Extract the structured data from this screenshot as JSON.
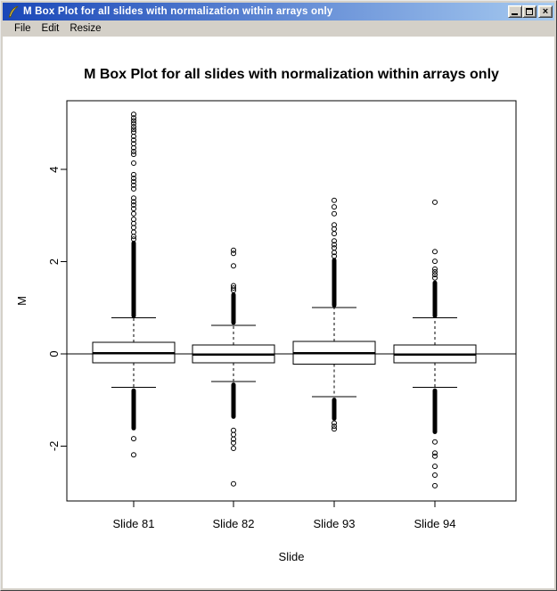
{
  "window": {
    "title": "M Box Plot for all slides with normalization within arrays only",
    "icon": "quill-icon",
    "controls": {
      "minimize": "minimize",
      "maximize": "maximize",
      "close": "close"
    },
    "menu": [
      "File",
      "Edit",
      "Resize"
    ]
  },
  "colors": {
    "titlebar_start": "#1a47b8",
    "titlebar_end": "#a6caf0",
    "chrome": "#d4d0c8",
    "canvas": "#ffffff",
    "ink": "#000000"
  },
  "chart_data": {
    "type": "boxplot",
    "title": "M Box Plot for all slides with normalization within arrays only",
    "xlabel": "Slide",
    "ylabel": "M",
    "categories": [
      "Slide 81",
      "Slide 82",
      "Slide 93",
      "Slide 94"
    ],
    "y_ticks": [
      -2,
      0,
      2,
      4
    ],
    "ylim": [
      -3.2,
      5.5
    ],
    "reference_line_y": 0,
    "grid": false,
    "boxes": [
      {
        "label": "Slide 81",
        "q1": -0.19,
        "median": 0.02,
        "q3": 0.25,
        "whisker_low": -0.73,
        "whisker_high": 0.78,
        "outlier_ranges_high": [
          [
            0.78,
            2.45
          ]
        ],
        "outliers_high": [
          2.49,
          2.55,
          2.64,
          2.74,
          2.83,
          2.92,
          3.04,
          3.15,
          3.23,
          3.3,
          3.38,
          3.58,
          3.66,
          3.74,
          3.81,
          3.89,
          4.14,
          4.33,
          4.39,
          4.47,
          4.56,
          4.64,
          4.72,
          4.81,
          4.87,
          4.93,
          5.0,
          5.06,
          5.12,
          5.2
        ],
        "outlier_ranges_low": [
          [
            -1.66,
            -0.75
          ]
        ],
        "outliers_low": [
          -1.84,
          -2.19
        ]
      },
      {
        "label": "Slide 82",
        "q1": -0.19,
        "median": -0.02,
        "q3": 0.19,
        "whisker_low": -0.6,
        "whisker_high": 0.62,
        "outlier_ranges_high": [
          [
            0.63,
            1.33
          ]
        ],
        "outliers_high": [
          1.38,
          1.43,
          1.48,
          1.91,
          2.18,
          2.25
        ],
        "outlier_ranges_low": [
          [
            -1.41,
            -0.62
          ]
        ],
        "outliers_low": [
          -1.66,
          -1.75,
          -1.85,
          -1.93,
          -2.05,
          -2.82
        ]
      },
      {
        "label": "Slide 93",
        "q1": -0.22,
        "median": 0.02,
        "q3": 0.27,
        "whisker_low": -0.93,
        "whisker_high": 1.01,
        "outlier_ranges_high": [
          [
            1.01,
            2.08
          ]
        ],
        "outliers_high": [
          2.12,
          2.2,
          2.3,
          2.37,
          2.45,
          2.61,
          2.71,
          2.8,
          3.04,
          3.19,
          3.33
        ],
        "outlier_ranges_low": [
          [
            -1.45,
            -0.95
          ]
        ],
        "outliers_low": [
          -1.5,
          -1.57,
          -1.63
        ]
      },
      {
        "label": "Slide 94",
        "q1": -0.19,
        "median": -0.02,
        "q3": 0.19,
        "whisker_low": -0.73,
        "whisker_high": 0.78,
        "outlier_ranges_high": [
          [
            0.78,
            1.59
          ]
        ],
        "outliers_high": [
          1.65,
          1.72,
          1.78,
          1.84,
          2.01,
          2.22,
          3.29
        ],
        "outlier_ranges_low": [
          [
            -1.74,
            -0.75
          ]
        ],
        "outliers_low": [
          -1.91,
          -2.15,
          -2.22,
          -2.44,
          -2.63,
          -2.86
        ]
      }
    ]
  }
}
